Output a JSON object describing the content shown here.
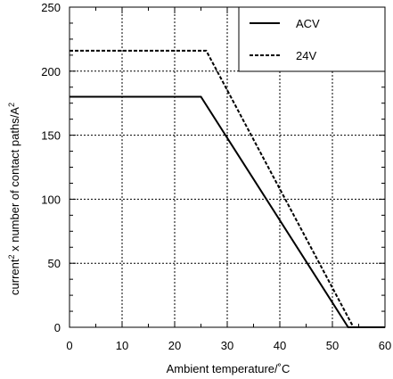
{
  "chart_data": {
    "type": "line",
    "xlabel": "Ambient temperature/˚C",
    "ylabel_parts": {
      "before_sup1": "current",
      "sup1": "2",
      "middle": " x number of contact paths/A",
      "sup2": "2"
    },
    "xlim": [
      0,
      60
    ],
    "ylim": [
      0,
      250
    ],
    "x_ticks": [
      0,
      10,
      20,
      30,
      40,
      50,
      60
    ],
    "y_ticks": [
      0,
      50,
      100,
      150,
      200,
      250
    ],
    "grid": true,
    "grid_style": "dotted",
    "legend_position": "top-right",
    "series": [
      {
        "name": "ACV",
        "line_style": "solid",
        "color": "#000000",
        "points": [
          [
            0,
            180
          ],
          [
            25,
            180
          ],
          [
            53,
            0
          ],
          [
            60,
            0
          ]
        ]
      },
      {
        "name": "24V",
        "line_style": "dashed",
        "color": "#000000",
        "points": [
          [
            0,
            216
          ],
          [
            26,
            216
          ],
          [
            54,
            0
          ],
          [
            60,
            0
          ]
        ]
      }
    ]
  }
}
